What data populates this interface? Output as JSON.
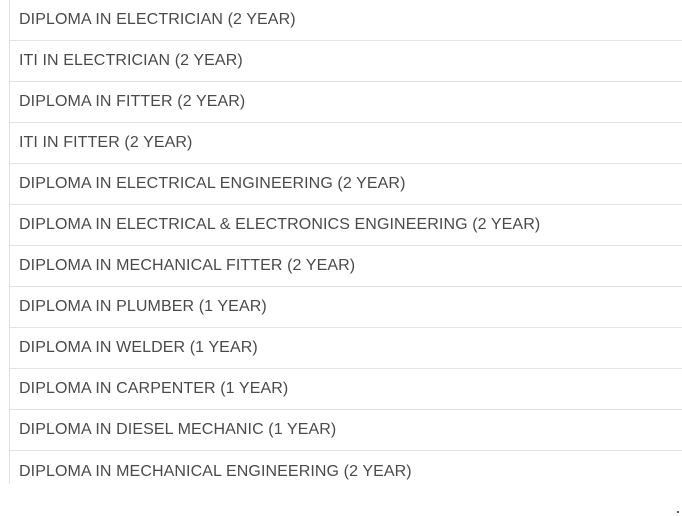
{
  "courses": [
    "DIPLOMA IN ELECTRICIAN (2 YEAR)",
    "ITI IN ELECTRICIAN (2 YEAR)",
    "DIPLOMA IN FITTER (2 YEAR)",
    "ITI IN FITTER (2 YEAR)",
    "DIPLOMA IN ELECTRICAL ENGINEERING (2 YEAR)",
    "DIPLOMA IN ELECTRICAL & ELECTRONICS ENGINEERING (2 YEAR)",
    "DIPLOMA IN MECHANICAL FITTER (2 YEAR)",
    "DIPLOMA IN PLUMBER (1 YEAR)",
    "DIPLOMA IN WELDER (1 YEAR)",
    "DIPLOMA IN CARPENTER (1 YEAR)",
    "DIPLOMA IN DIESEL MECHANIC (1 YEAR)",
    "DIPLOMA IN MECHANICAL ENGINEERING (2 YEAR)"
  ]
}
